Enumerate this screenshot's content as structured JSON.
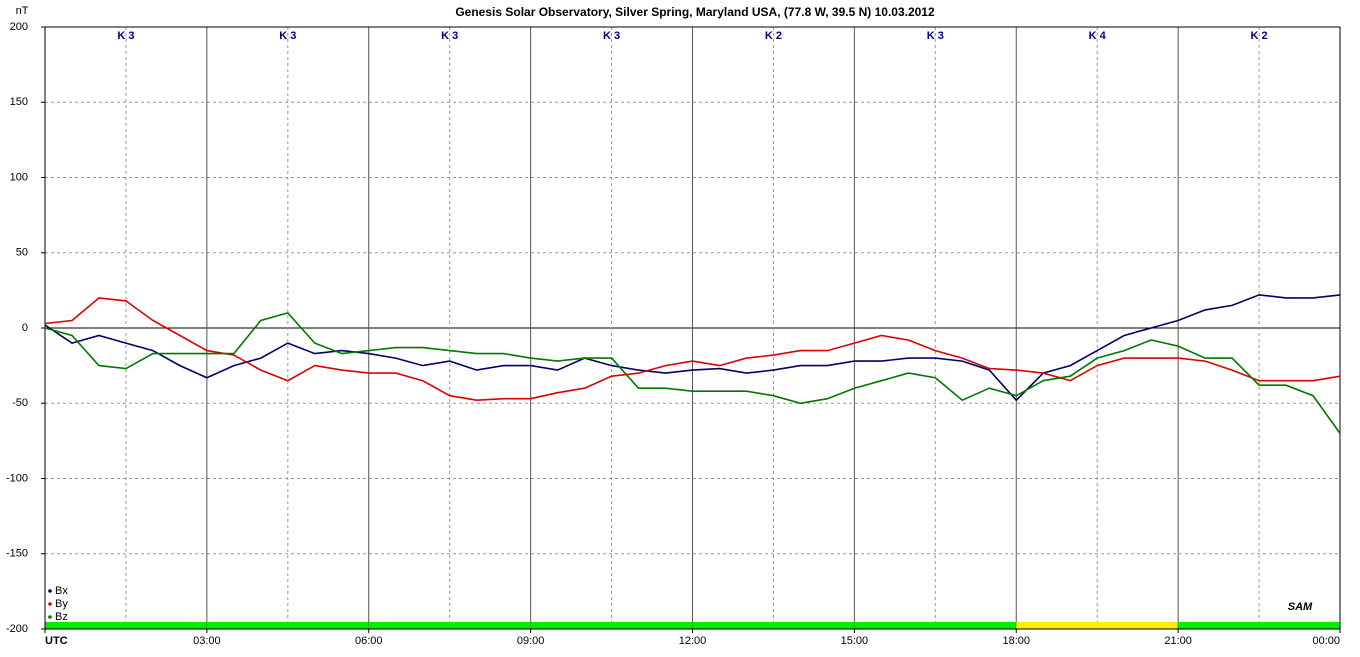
{
  "chart_data": {
    "type": "line",
    "title": "Genesis Solar Observatory, Silver Spring, Maryland USA, (77.8 W, 39.5 N)  10.03.2012",
    "y_label": "nT",
    "logo": "SAM",
    "x": [
      0,
      0.5,
      1,
      1.5,
      2,
      2.5,
      3,
      3.5,
      4,
      4.5,
      5,
      5.5,
      6,
      6.5,
      7,
      7.5,
      8,
      8.5,
      9,
      9.5,
      10,
      10.5,
      11,
      11.5,
      12,
      12.5,
      13,
      13.5,
      14,
      14.5,
      15,
      15.5,
      16,
      16.5,
      17,
      17.5,
      18,
      18.5,
      19,
      19.5,
      20,
      20.5,
      21,
      21.5,
      22,
      22.5,
      23,
      23.5,
      24
    ],
    "series": [
      {
        "name": "Bx",
        "color": "#000066",
        "values": [
          2,
          -10,
          -5,
          -10,
          -15,
          -25,
          -33,
          -25,
          -20,
          -10,
          -17,
          -15,
          -17,
          -20,
          -25,
          -22,
          -28,
          -25,
          -25,
          -28,
          -20,
          -25,
          -28,
          -30,
          -28,
          -27,
          -30,
          -28,
          -25,
          -25,
          -22,
          -22,
          -20,
          -20,
          -22,
          -28,
          -48,
          -30,
          -25,
          -15,
          -5,
          0,
          5,
          12,
          15,
          22,
          20,
          20,
          22
        ]
      },
      {
        "name": "By",
        "color": "#dd0000",
        "values": [
          3,
          5,
          20,
          18,
          5,
          -5,
          -15,
          -18,
          -28,
          -35,
          -25,
          -28,
          -30,
          -30,
          -35,
          -45,
          -48,
          -47,
          -47,
          -43,
          -40,
          -32,
          -30,
          -25,
          -22,
          -25,
          -20,
          -18,
          -15,
          -15,
          -10,
          -5,
          -8,
          -15,
          -20,
          -27,
          -28,
          -30,
          -35,
          -25,
          -20,
          -20,
          -20,
          -22,
          -28,
          -35,
          -35,
          -35,
          -32
        ]
      },
      {
        "name": "Bz",
        "color": "#007700",
        "values": [
          0,
          -5,
          -25,
          -27,
          -17,
          -17,
          -17,
          -17,
          5,
          10,
          -10,
          -17,
          -15,
          -13,
          -13,
          -15,
          -17,
          -17,
          -20,
          -22,
          -20,
          -20,
          -40,
          -40,
          -42,
          -42,
          -42,
          -45,
          -50,
          -47,
          -40,
          -35,
          -30,
          -33,
          -48,
          -40,
          -45,
          -35,
          -32,
          -20,
          -15,
          -8,
          -12,
          -20,
          -20,
          -38,
          -38,
          -45,
          -70
        ]
      }
    ],
    "xlim": [
      0,
      24
    ],
    "ylim": [
      -200,
      200
    ],
    "xticks": [
      {
        "value": 0,
        "label": "UTC"
      },
      {
        "value": 3,
        "label": "03:00"
      },
      {
        "value": 6,
        "label": "06:00"
      },
      {
        "value": 9,
        "label": "09:00"
      },
      {
        "value": 12,
        "label": "12:00"
      },
      {
        "value": 15,
        "label": "15:00"
      },
      {
        "value": 18,
        "label": "18:00"
      },
      {
        "value": 21,
        "label": "21:00"
      },
      {
        "value": 24,
        "label": "00:00"
      }
    ],
    "yticks": [
      200,
      150,
      100,
      50,
      0,
      -50,
      -100,
      -150,
      -200
    ],
    "k_index": [
      "K 3",
      "K 3",
      "K 3",
      "K 3",
      "K 2",
      "K 3",
      "K 4",
      "K 2"
    ],
    "activity_colors": [
      "#00ee00",
      "#00ee00",
      "#00ee00",
      "#00ee00",
      "#00ee00",
      "#00ee00",
      "#ffee00",
      "#00ee00"
    ],
    "grid": true,
    "legend": "lower-left"
  }
}
